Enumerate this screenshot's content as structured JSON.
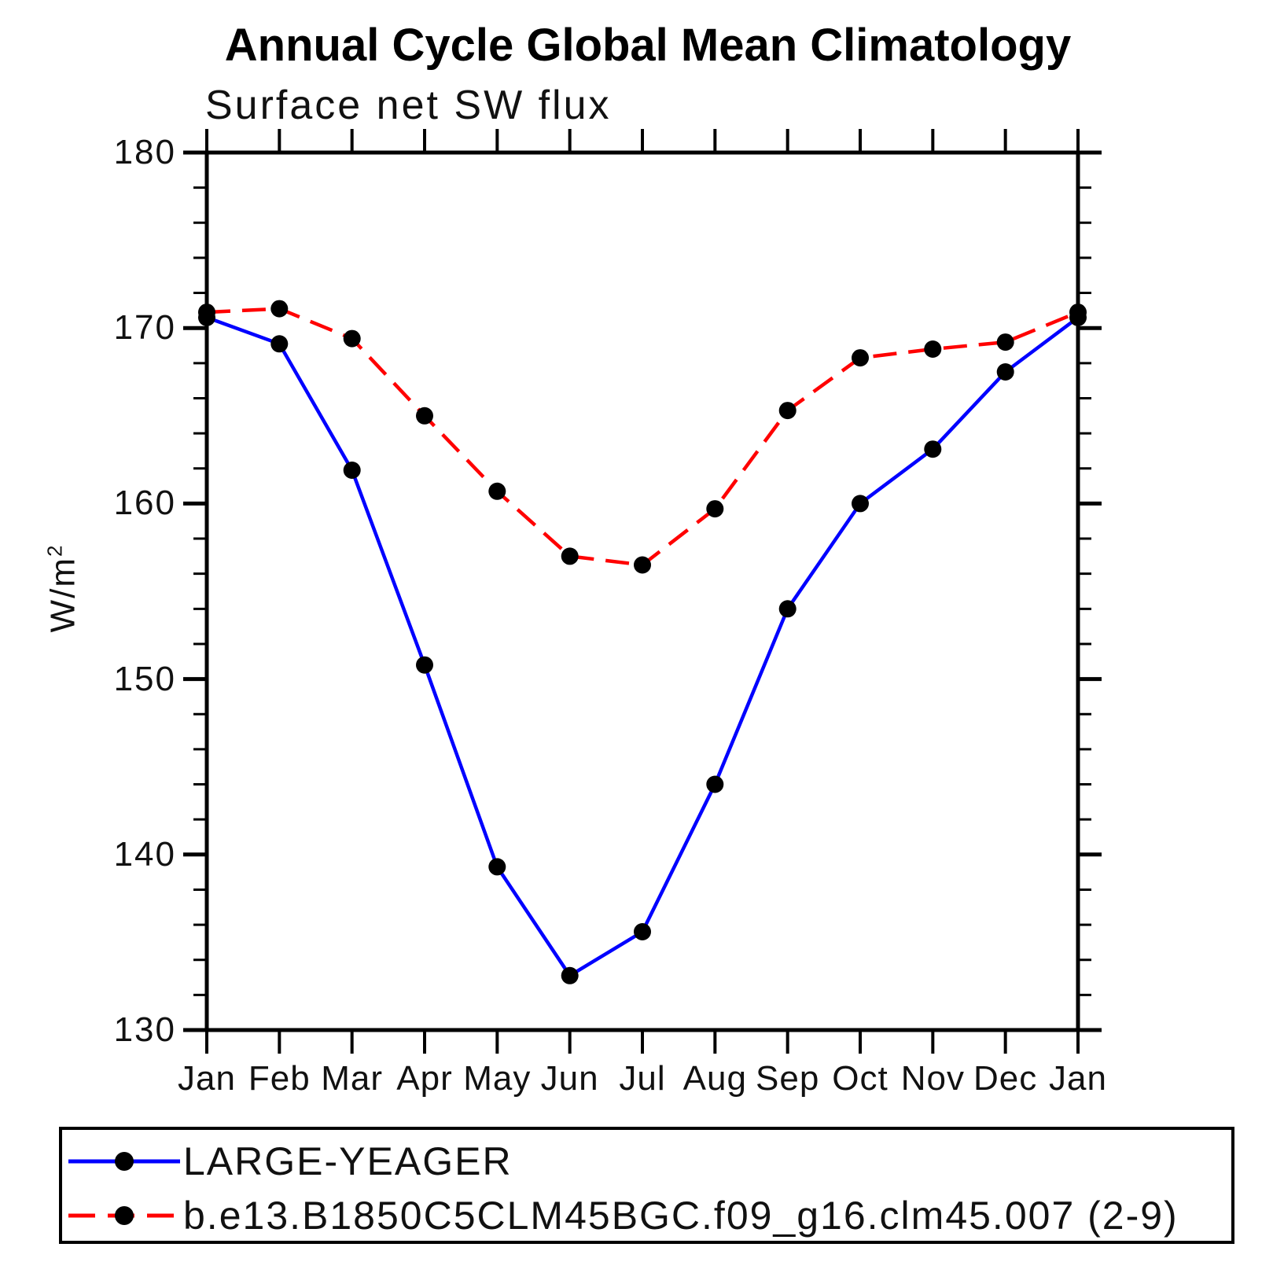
{
  "page": {
    "background": "#ffffff"
  },
  "chart_data": {
    "type": "line",
    "title": "Annual Cycle Global Mean Climatology",
    "subtitle": "Surface net SW flux",
    "ylabel": "W/m^2",
    "ylabel_base": "W/m",
    "ylabel_exponent": "2",
    "xlabel": "",
    "categories": [
      "Jan",
      "Feb",
      "Mar",
      "Apr",
      "May",
      "Jun",
      "Jul",
      "Aug",
      "Sep",
      "Oct",
      "Nov",
      "Dec",
      "Jan"
    ],
    "ylim": [
      130,
      180
    ],
    "y_major_step": 10,
    "y_minor_step": 2,
    "y_tick_labels": [
      "180",
      "170",
      "160",
      "150",
      "140",
      "130"
    ],
    "grid": false,
    "legend_position": "bottom-box",
    "axis_color": "#000000",
    "series": [
      {
        "name": "LARGE-YEAGER",
        "color": "#0000ff",
        "style": "solid",
        "marker": "circle",
        "marker_color": "#000000",
        "values": [
          170.6,
          169.1,
          161.9,
          150.8,
          139.3,
          133.1,
          135.6,
          144.0,
          154.0,
          160.0,
          163.1,
          167.5,
          170.6
        ]
      },
      {
        "name": "b.e13.B1850C5CLM45BGC.f09_g16.clm45.007 (2-9)",
        "color": "#ff0000",
        "style": "dashed",
        "marker": "circle",
        "marker_color": "#000000",
        "values": [
          170.9,
          171.1,
          169.4,
          165.0,
          160.7,
          157.0,
          156.5,
          159.7,
          165.3,
          168.3,
          168.8,
          169.2,
          170.9
        ]
      }
    ]
  }
}
